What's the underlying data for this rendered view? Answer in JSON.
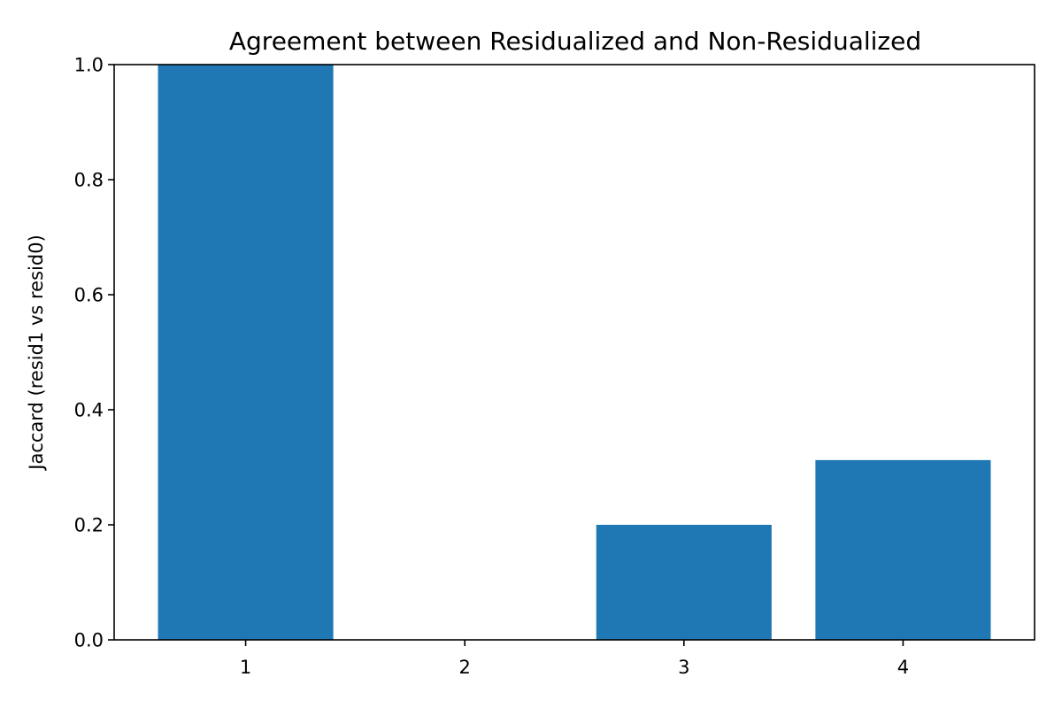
{
  "chart_data": {
    "type": "bar",
    "title": "Agreement between Residualized and Non-Residualized",
    "xlabel": "",
    "ylabel": "Jaccard (resid1 vs resid0)",
    "categories": [
      "1",
      "2",
      "3",
      "4"
    ],
    "values": [
      1.0,
      0.0,
      0.2,
      0.3125
    ],
    "ylim": [
      0,
      1
    ],
    "yticks": [
      0.0,
      0.2,
      0.4,
      0.6,
      0.8,
      1.0
    ],
    "ytick_labels": [
      "0.0",
      "0.2",
      "0.4",
      "0.6",
      "0.8",
      "1.0"
    ],
    "grid": false,
    "legend": "none",
    "bar_color": "#1f77b4"
  }
}
